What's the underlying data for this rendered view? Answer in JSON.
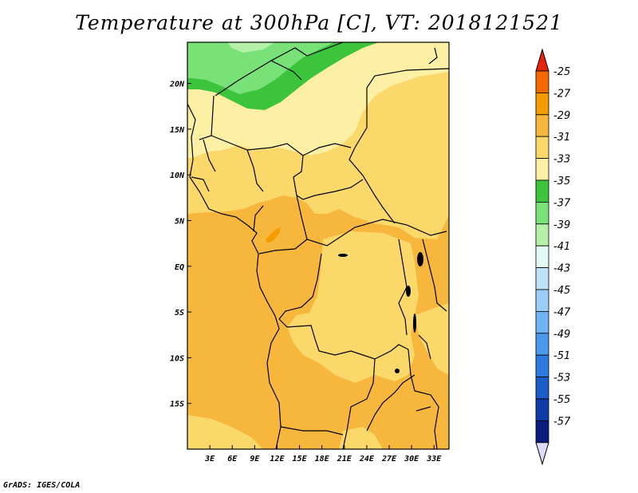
{
  "title": "Temperature at 300hPa [C], VT: 2018121521",
  "credit": "GrADS: IGES/COLA",
  "map": {
    "lat_labels": [
      "20N",
      "15N",
      "10N",
      "5N",
      "EQ",
      "5S",
      "10S",
      "15S"
    ],
    "lon_labels": [
      "3E",
      "6E",
      "9E",
      "12E",
      "15E",
      "18E",
      "21E",
      "24E",
      "27E",
      "30E",
      "33E"
    ],
    "lon_range": [
      0,
      35
    ],
    "lat_range": [
      -20,
      24.5
    ],
    "colors": {
      "c_29_31": "#f6b73c",
      "c_31_33": "#fad86a",
      "c_33_35": "#fdf0a4",
      "c_35_37": "#3cc43c",
      "c_37_39": "#78e278",
      "c_39_41": "#b4f0a8",
      "c_27_29": "#f59c00",
      "border": "#000000"
    }
  },
  "colorbar": {
    "labels": [
      "-25",
      "-27",
      "-29",
      "-31",
      "-33",
      "-35",
      "-37",
      "-39",
      "-41",
      "-43",
      "-45",
      "-47",
      "-49",
      "-51",
      "-53",
      "-55",
      "-57"
    ],
    "colors": [
      "#e4240c",
      "#f56a00",
      "#f59c00",
      "#f6b73c",
      "#fad86a",
      "#fdf0a4",
      "#3cc43c",
      "#78e278",
      "#b4f0a8",
      "#e2f8f2",
      "#bfe2fb",
      "#9ccdf7",
      "#6fb3f2",
      "#4a98ec",
      "#2a7ae0",
      "#1a5cc8",
      "#0f3ca8",
      "#0a1c7c",
      "#dcdcfa"
    ]
  }
}
